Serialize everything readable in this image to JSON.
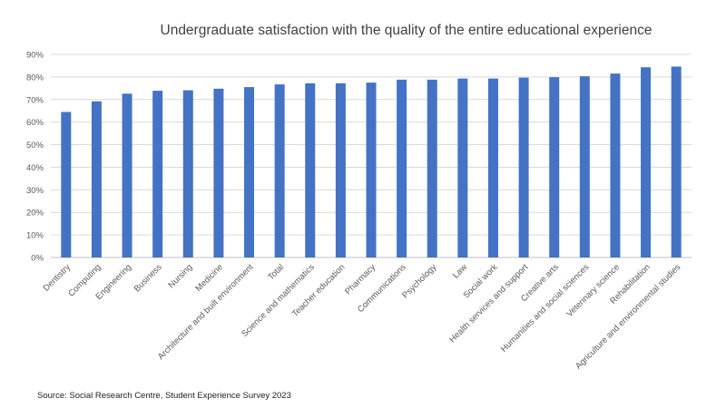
{
  "chart_data": {
    "type": "bar",
    "title": "Undergraduate satisfaction with the quality of the entire educational experience",
    "xlabel": "",
    "ylabel": "",
    "ylim": [
      0,
      90
    ],
    "yticks": [
      "0%",
      "10%",
      "20%",
      "30%",
      "40%",
      "50%",
      "60%",
      "70%",
      "80%",
      "90%"
    ],
    "y_tick_values": [
      0,
      10,
      20,
      30,
      40,
      50,
      60,
      70,
      80,
      90
    ],
    "grid": true,
    "legend": "none",
    "categories": [
      "Dentistry",
      "Computing",
      "Engineering",
      "Business",
      "Nursing",
      "Medicine",
      "Architecture and built environment",
      "Total",
      "Science and mathematics",
      "Teacher education",
      "Pharmacy",
      "Communications",
      "Psychology",
      "Law",
      "Social work",
      "Health services and support",
      "Creative arts",
      "Humanities and social sciences",
      "Veterinary science",
      "Rehabilitation",
      "Agriculture and environmental studies"
    ],
    "values": [
      64.5,
      69.2,
      72.6,
      73.9,
      74.1,
      74.8,
      75.5,
      76.7,
      77.2,
      77.2,
      77.5,
      78.8,
      78.8,
      79.3,
      79.3,
      79.7,
      79.9,
      80.3,
      81.5,
      84.3,
      84.6
    ],
    "bar_color": "#4472C4"
  },
  "source": "Source: Social Research Centre, Student Experience Survey 2023"
}
